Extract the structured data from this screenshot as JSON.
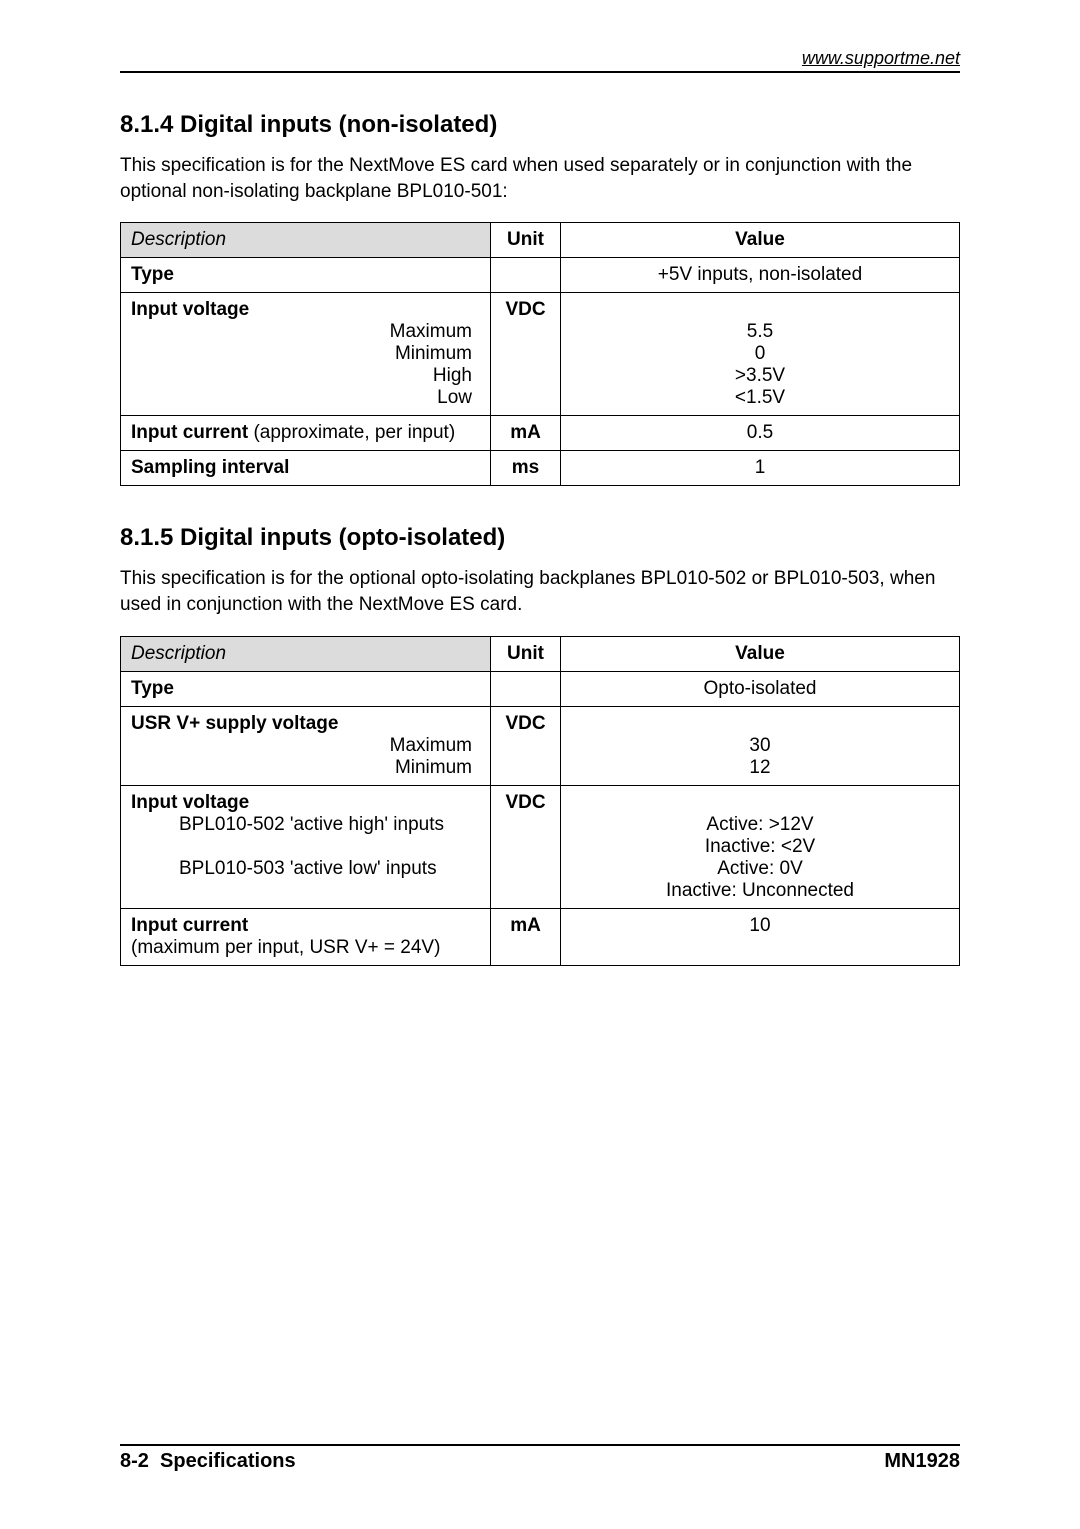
{
  "header": {
    "url": "www.supportme.net"
  },
  "section1": {
    "number": "8.1.4",
    "title": "Digital inputs (non-isolated)",
    "intro": "This specification is for the NextMove ES card when used separately or in conjunction with the optional non-isolating backplane BPL010-501:",
    "table": {
      "headers": {
        "desc": "Description",
        "unit": "Unit",
        "value": "Value"
      },
      "rows": {
        "type": {
          "label": "Type",
          "unit": "",
          "value": "+5V inputs, non-isolated"
        },
        "input_voltage": {
          "label": "Input voltage",
          "sub": [
            "Maximum",
            "Minimum",
            "High",
            "Low"
          ],
          "unit": "VDC",
          "values": [
            "5.5",
            "0",
            ">3.5V",
            "<1.5V"
          ]
        },
        "input_current": {
          "label_bold": "Input current",
          "label_rest": " (approximate, per input)",
          "unit": "mA",
          "value": "0.5"
        },
        "sampling": {
          "label": "Sampling interval",
          "unit": "ms",
          "value": "1"
        }
      }
    }
  },
  "section2": {
    "number": "8.1.5",
    "title": "Digital inputs (opto-isolated)",
    "intro": "This specification is for the optional opto-isolating backplanes BPL010-502 or BPL010-503, when used in conjunction with the NextMove ES card.",
    "table": {
      "headers": {
        "desc": "Description",
        "unit": "Unit",
        "value": "Value"
      },
      "rows": {
        "type": {
          "label": "Type",
          "unit": "",
          "value": "Opto-isolated"
        },
        "usr_v": {
          "label": "USR V+ supply voltage",
          "sub": [
            "Maximum",
            "Minimum"
          ],
          "unit": "VDC",
          "values": [
            "30",
            "12"
          ]
        },
        "input_voltage": {
          "label": "Input voltage",
          "sub1": "BPL010-502 'active high' inputs",
          "sub2": "BPL010-503 'active low' inputs",
          "unit": "VDC",
          "val1a": "Active: >12V",
          "val1b": "Inactive: <2V",
          "val2a": "Active: 0V",
          "val2b": "Inactive: Unconnected"
        },
        "input_current": {
          "label": "Input current",
          "sub": "(maximum per input, USR V+ = 24V)",
          "unit": "mA",
          "value": "10"
        }
      }
    }
  },
  "footer": {
    "left_num": "8-2",
    "left_text": "Specifications",
    "right": "MN1928"
  }
}
